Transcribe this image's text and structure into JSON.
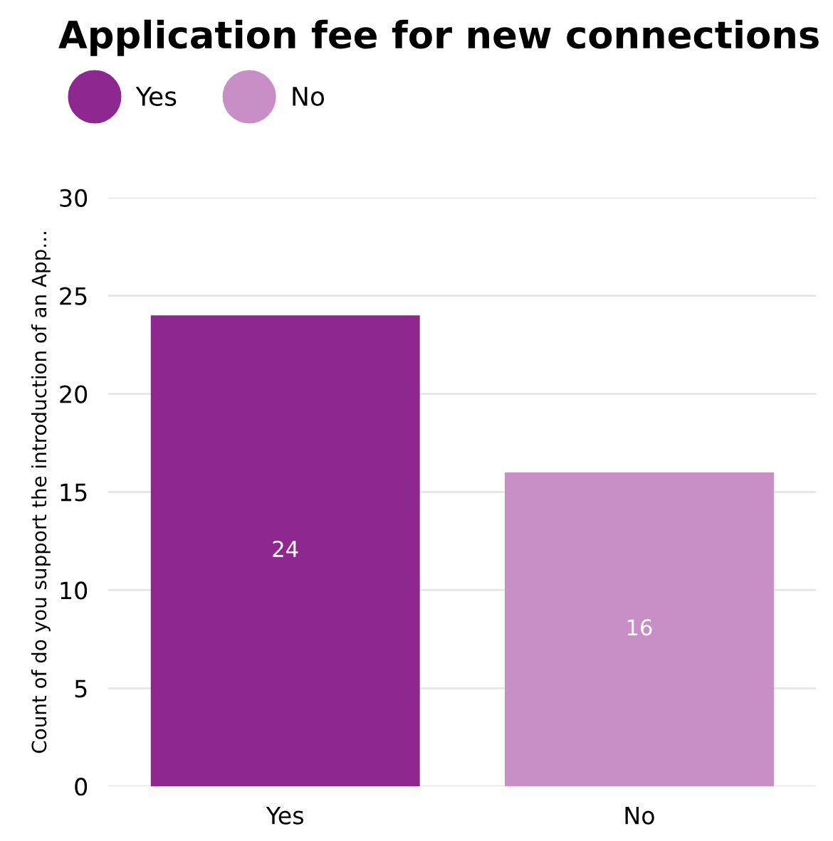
{
  "chart_data": {
    "type": "bar",
    "title": "Application fee for new connections",
    "ylabel": "Count of do you support the introduction of an App...",
    "categories": [
      "Yes",
      "No"
    ],
    "series": [
      {
        "name": "Yes",
        "color": "#8e278f",
        "values": [
          24,
          null
        ]
      },
      {
        "name": "No",
        "color": "#c88fc6",
        "values": [
          null,
          16
        ]
      }
    ],
    "stacked": true,
    "ylim": [
      0,
      30
    ],
    "yticks": [
      0,
      5,
      10,
      15,
      20,
      25,
      30
    ],
    "grid": "y",
    "legend": "top left",
    "data_labels": true
  }
}
